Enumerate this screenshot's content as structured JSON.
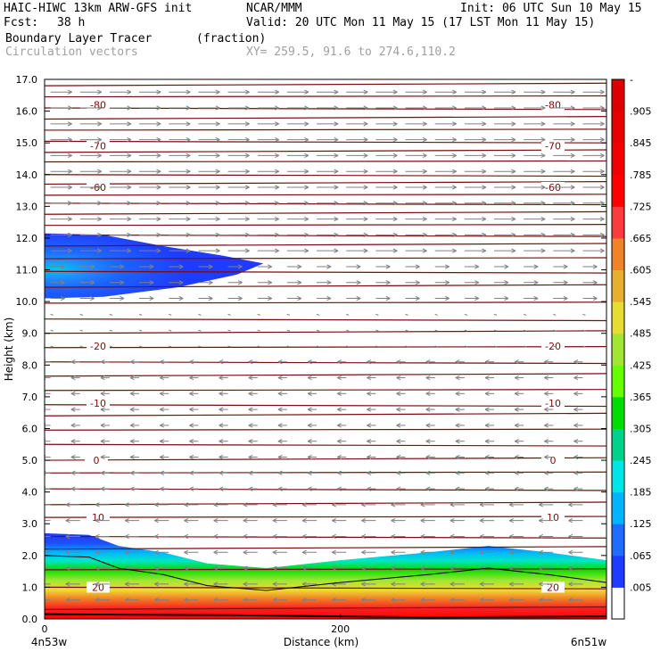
{
  "header": {
    "model": "HAIC-HIWC 13km ARW-GFS init",
    "org": "NCAR/MMM",
    "init": "Init: 06 UTC Sun 10 May 15",
    "fcst_label": "Fcst:",
    "fcst_value": "38 h",
    "valid": "Valid: 20 UTC Mon 11 May 15 (17 LST Mon 11 May 15)",
    "field": "Boundary Layer Tracer",
    "units": "(fraction)",
    "vectors": "Circulation vectors",
    "xy": "XY= 259.5, 91.6 to 274.6,110.2"
  },
  "chart_data": {
    "type": "cross-section",
    "title": "Boundary Layer Tracer",
    "units": "(fraction)",
    "xlabel": "Distance (km)",
    "ylabel": "Height (km)",
    "xlim": [
      0,
      380
    ],
    "ylim": [
      0.0,
      17.0
    ],
    "x_ticks": [
      {
        "value": 0,
        "label": "0"
      },
      {
        "value": 200,
        "label": "200"
      }
    ],
    "x_endpoints": {
      "left": "4n53w",
      "right": "6n51w"
    },
    "y_ticks": [
      "0.0",
      "1.0",
      "2.0",
      "3.0",
      "4.0",
      "5.0",
      "6.0",
      "7.0",
      "8.0",
      "9.0",
      "10.0",
      "11.0",
      "12.0",
      "13.0",
      "14.0",
      "15.0",
      "16.0",
      "17.0"
    ],
    "colorbar": {
      "labels": [
        ".005",
        ".065",
        ".125",
        ".185",
        ".245",
        ".305",
        ".365",
        ".425",
        ".485",
        ".545",
        ".605",
        ".665",
        ".725",
        ".785",
        ".845",
        ".905",
        "-"
      ],
      "colors": [
        "#ffffff",
        "#1e3cff",
        "#1f6cff",
        "#00b4ff",
        "#00e6e6",
        "#00d28c",
        "#00dc00",
        "#64ff00",
        "#a0e632",
        "#e6dc32",
        "#e6af2d",
        "#f08228",
        "#fa3c3c",
        "#ff0000",
        "#f00000",
        "#e60000",
        "#dc0000",
        "#d20000"
      ]
    },
    "temperature_contour_labels": [
      {
        "value": "-80",
        "y": 16.2
      },
      {
        "value": "-70",
        "y": 14.9
      },
      {
        "value": "-60",
        "y": 13.6
      },
      {
        "value": "-20",
        "y": 8.6
      },
      {
        "value": "-10",
        "y": 6.8
      },
      {
        "value": "0",
        "y": 5.0
      },
      {
        "value": "10",
        "y": 3.2
      },
      {
        "value": "20",
        "y": 1.0
      }
    ],
    "boundary_layer_top_km": [
      {
        "x": 0,
        "y": 2.7
      },
      {
        "x": 30,
        "y": 2.65
      },
      {
        "x": 50,
        "y": 2.3
      },
      {
        "x": 80,
        "y": 2.1
      },
      {
        "x": 110,
        "y": 1.75
      },
      {
        "x": 150,
        "y": 1.6
      },
      {
        "x": 200,
        "y": 1.85
      },
      {
        "x": 260,
        "y": 2.1
      },
      {
        "x": 300,
        "y": 2.3
      },
      {
        "x": 340,
        "y": 2.1
      },
      {
        "x": 380,
        "y": 1.85
      }
    ],
    "anvil_tracer": {
      "x_start": 0,
      "x_end": 148,
      "y_bottom": 10.1,
      "y_top": 12.15
    }
  }
}
